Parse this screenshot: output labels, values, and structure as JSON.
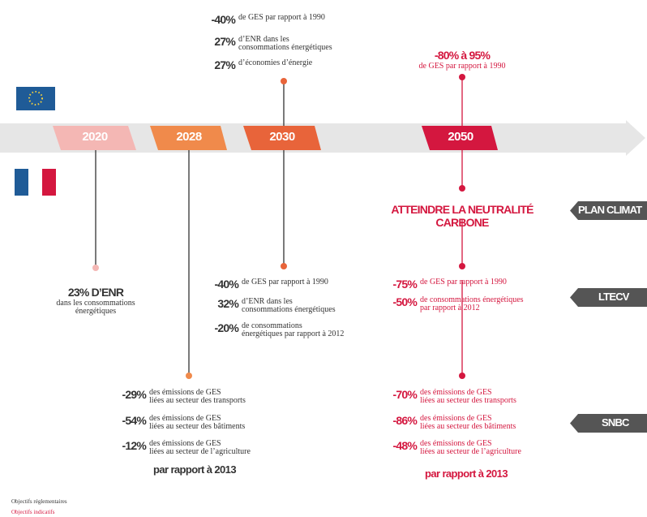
{
  "timeline": {
    "years": [
      "2020",
      "2028",
      "2030",
      "2050"
    ]
  },
  "eu": {
    "y2030": [
      {
        "value": "-40%",
        "lines": [
          "de GES par rapport à 1990"
        ]
      },
      {
        "value": "27%",
        "lines": [
          "d’ENR dans les",
          "consommations énergétiques"
        ]
      },
      {
        "value": "27%",
        "lines": [
          "d’économies d’énergie"
        ]
      }
    ],
    "y2050": {
      "value": "-80% à 95%",
      "lines": [
        "de GES par rapport à 1990"
      ]
    }
  },
  "plan_climat": {
    "label": "PLAN CLIMAT",
    "goal": "ATTEINDRE LA NEUTRALITÉ CARBONE"
  },
  "ltecv": {
    "label": "LTECV",
    "y2020": {
      "value": "23% D’ENR",
      "lines": [
        "dans les consommations",
        "énergétiques"
      ]
    },
    "y2030": [
      {
        "value": "-40%",
        "lines": [
          "de GES par rapport à 1990"
        ]
      },
      {
        "value": "32%",
        "lines": [
          "d’ENR dans les",
          "consommations énergétiques"
        ]
      },
      {
        "value": "-20%",
        "lines": [
          "de consommations",
          "énergétiques par rapport à 2012"
        ]
      }
    ],
    "y2050": [
      {
        "value": "-75%",
        "lines": [
          "de GES par rapport à 1990"
        ]
      },
      {
        "value": "-50%",
        "lines": [
          "de consommations énergétiques",
          "par rapport à 2012"
        ]
      }
    ]
  },
  "snbc": {
    "label": "SNBC",
    "y2028": [
      {
        "value": "-29%",
        "lines": [
          "des émissions de GES",
          "liées au secteur des transports"
        ]
      },
      {
        "value": "-54%",
        "lines": [
          "des émissions de GES",
          "liées au secteur des bâtiments"
        ]
      },
      {
        "value": "-12%",
        "lines": [
          "des émissions de GES",
          "liées au secteur de l’agriculture"
        ]
      }
    ],
    "footer_2028": "par rapport à 2013",
    "y2050": [
      {
        "value": "-70%",
        "lines": [
          "des émissions de GES",
          "liées au secteur des transports"
        ]
      },
      {
        "value": "-86%",
        "lines": [
          "des émissions de GES",
          "liées au secteur des bâtiments"
        ]
      },
      {
        "value": "-48%",
        "lines": [
          "des émissions de GES",
          "liées au secteur de l’agriculture"
        ]
      }
    ],
    "footer_2050": "par rapport à 2013"
  },
  "legend": [
    "Objectifs réglementaires",
    "Objectifs indicatifs"
  ]
}
